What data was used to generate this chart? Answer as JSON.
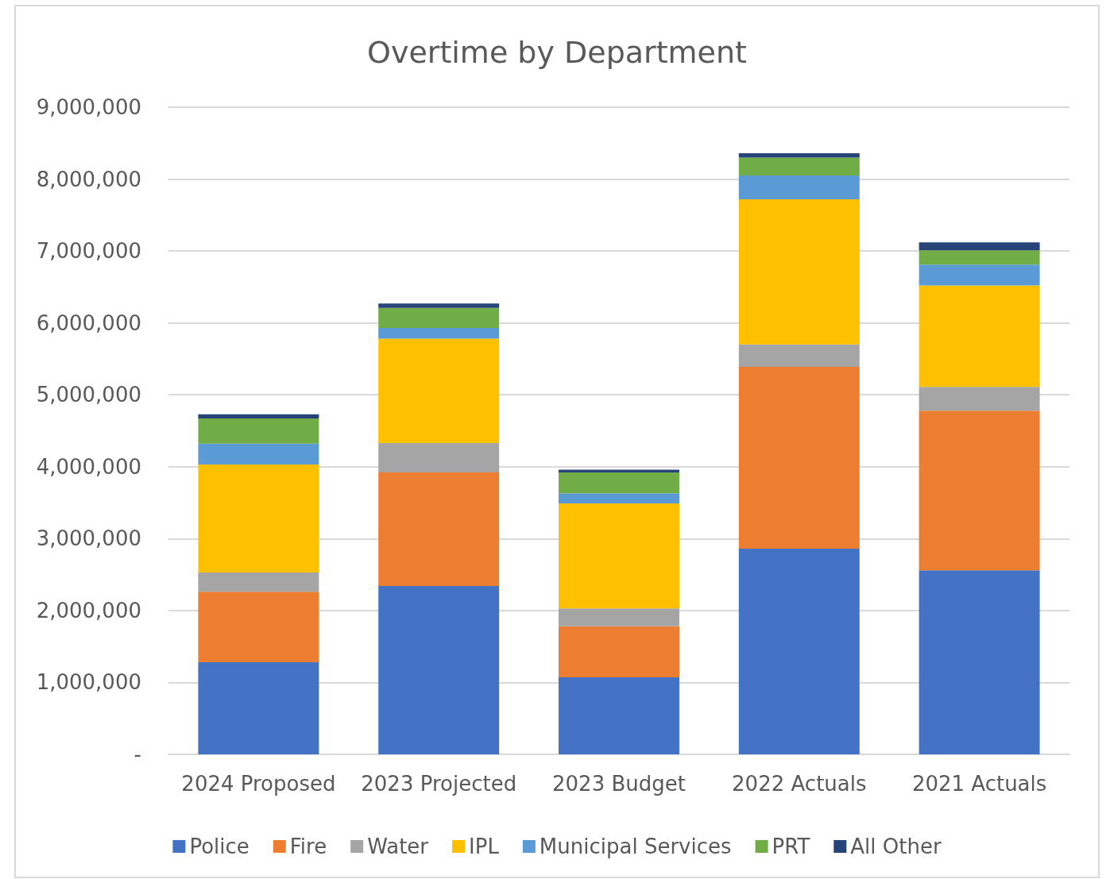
{
  "chart_data": {
    "type": "bar",
    "title": "Overtime by Department",
    "stacked": true,
    "categories": [
      "2024 Proposed",
      "2023 Projected",
      "2023 Budget",
      "2022 Actuals",
      "2021 Actuals"
    ],
    "series": [
      {
        "name": "Police",
        "color": "#4472c4",
        "values": [
          1280000,
          2340000,
          1070000,
          2860000,
          2560000
        ]
      },
      {
        "name": "Fire",
        "color": "#ed7d31",
        "values": [
          980000,
          1580000,
          710000,
          2530000,
          2220000
        ]
      },
      {
        "name": "Water",
        "color": "#a5a5a5",
        "values": [
          270000,
          410000,
          250000,
          310000,
          330000
        ]
      },
      {
        "name": "IPL",
        "color": "#ffc000",
        "values": [
          1500000,
          1450000,
          1460000,
          2020000,
          1410000
        ]
      },
      {
        "name": "Municipal Services",
        "color": "#5b9bd5",
        "values": [
          290000,
          150000,
          140000,
          330000,
          290000
        ]
      },
      {
        "name": "PRT",
        "color": "#70ad47",
        "values": [
          350000,
          280000,
          290000,
          250000,
          200000
        ]
      },
      {
        "name": "All Other",
        "color": "#264478",
        "values": [
          60000,
          60000,
          40000,
          60000,
          110000
        ]
      }
    ],
    "ylim": [
      0,
      9000000
    ],
    "yticks": [
      {
        "value": 0,
        "label": "-"
      },
      {
        "value": 1000000,
        "label": "1,000,000"
      },
      {
        "value": 2000000,
        "label": "2,000,000"
      },
      {
        "value": 3000000,
        "label": "3,000,000"
      },
      {
        "value": 4000000,
        "label": "4,000,000"
      },
      {
        "value": 5000000,
        "label": "5,000,000"
      },
      {
        "value": 6000000,
        "label": "6,000,000"
      },
      {
        "value": 7000000,
        "label": "7,000,000"
      },
      {
        "value": 8000000,
        "label": "8,000,000"
      },
      {
        "value": 9000000,
        "label": "9,000,000"
      }
    ],
    "grid": "y",
    "legend": "bottom"
  }
}
